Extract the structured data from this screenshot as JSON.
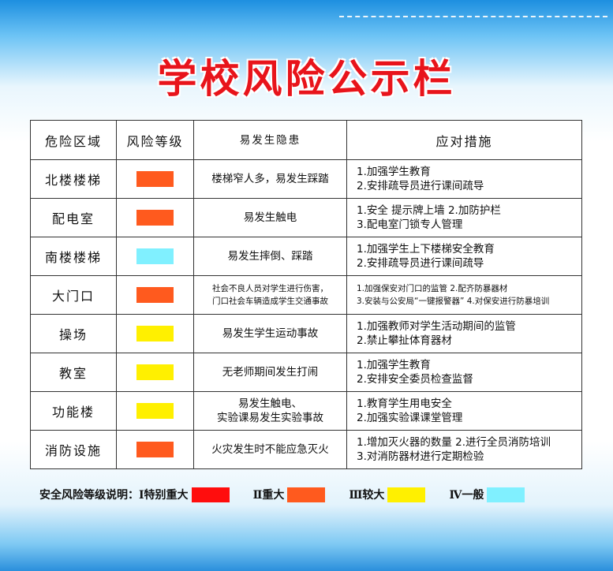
{
  "title": "学校风险公示栏",
  "headers": [
    "危险区域",
    "风险等级",
    "易发生隐患",
    "应对措施"
  ],
  "colors": {
    "red": "#ff0d0d",
    "orange": "#ff5a1e",
    "yellow": "#fff000",
    "cyan": "#80f0ff",
    "title": "#e8141b"
  },
  "rows": [
    {
      "area": "北楼楼梯",
      "level": "orange",
      "hazard": [
        "楼梯窄人多，易发生踩踏"
      ],
      "measures": [
        "1.加强学生教育",
        "2.安排疏导员进行课间疏导"
      ]
    },
    {
      "area": "配电室",
      "level": "orange",
      "hazard": [
        "易发生触电"
      ],
      "measures": [
        "1.安全 提示牌上墙  2.加防护栏",
        "3.配电室门锁专人管理"
      ]
    },
    {
      "area": "南楼楼梯",
      "level": "cyan",
      "hazard": [
        "易发生摔倒、踩踏"
      ],
      "measures": [
        "1.加强学生上下楼梯安全教育",
        "2.安排疏导员进行课间疏导"
      ]
    },
    {
      "area": "大门口",
      "level": "orange",
      "hazard": [
        "社会不良人员对学生进行伤害，",
        "门口社会车辆造成学生交通事故"
      ],
      "measures": [
        "1.加强保安对门口的监管  2.配齐防暴器材",
        "3.安装与公安局“一键报警器” 4.对保安进行防暴培训"
      ],
      "small": true
    },
    {
      "area": "操场",
      "level": "yellow",
      "hazard": [
        "易发生学生运动事故"
      ],
      "measures": [
        "1.加强教师对学生活动期间的监管",
        "2.禁止攀扯体育器材"
      ]
    },
    {
      "area": "教室",
      "level": "yellow",
      "hazard": [
        "无老师期间发生打闹"
      ],
      "measures": [
        "1.加强学生教育",
        "2.安排安全委员检查监督"
      ]
    },
    {
      "area": "功能楼",
      "level": "yellow",
      "hazard": [
        "易发生触电、",
        "实验课易发生实验事故"
      ],
      "measures": [
        "1.教育学生用电安全",
        "2.加强实验课课堂管理"
      ]
    },
    {
      "area": "消防设施",
      "level": "orange",
      "hazard": [
        "火灾发生时不能应急灭火"
      ],
      "measures": [
        "1.增加灭火器的数量 2.进行全员消防培训",
        "3.对消防器材进行定期检验"
      ]
    }
  ],
  "legend": {
    "label": "安全风险等级说明：",
    "items": [
      {
        "text": "Ⅰ特别重大",
        "color": "red"
      },
      {
        "text": "Ⅱ重大",
        "color": "orange"
      },
      {
        "text": "Ⅲ较大",
        "color": "yellow"
      },
      {
        "text": "Ⅳ一般",
        "color": "cyan"
      }
    ]
  }
}
